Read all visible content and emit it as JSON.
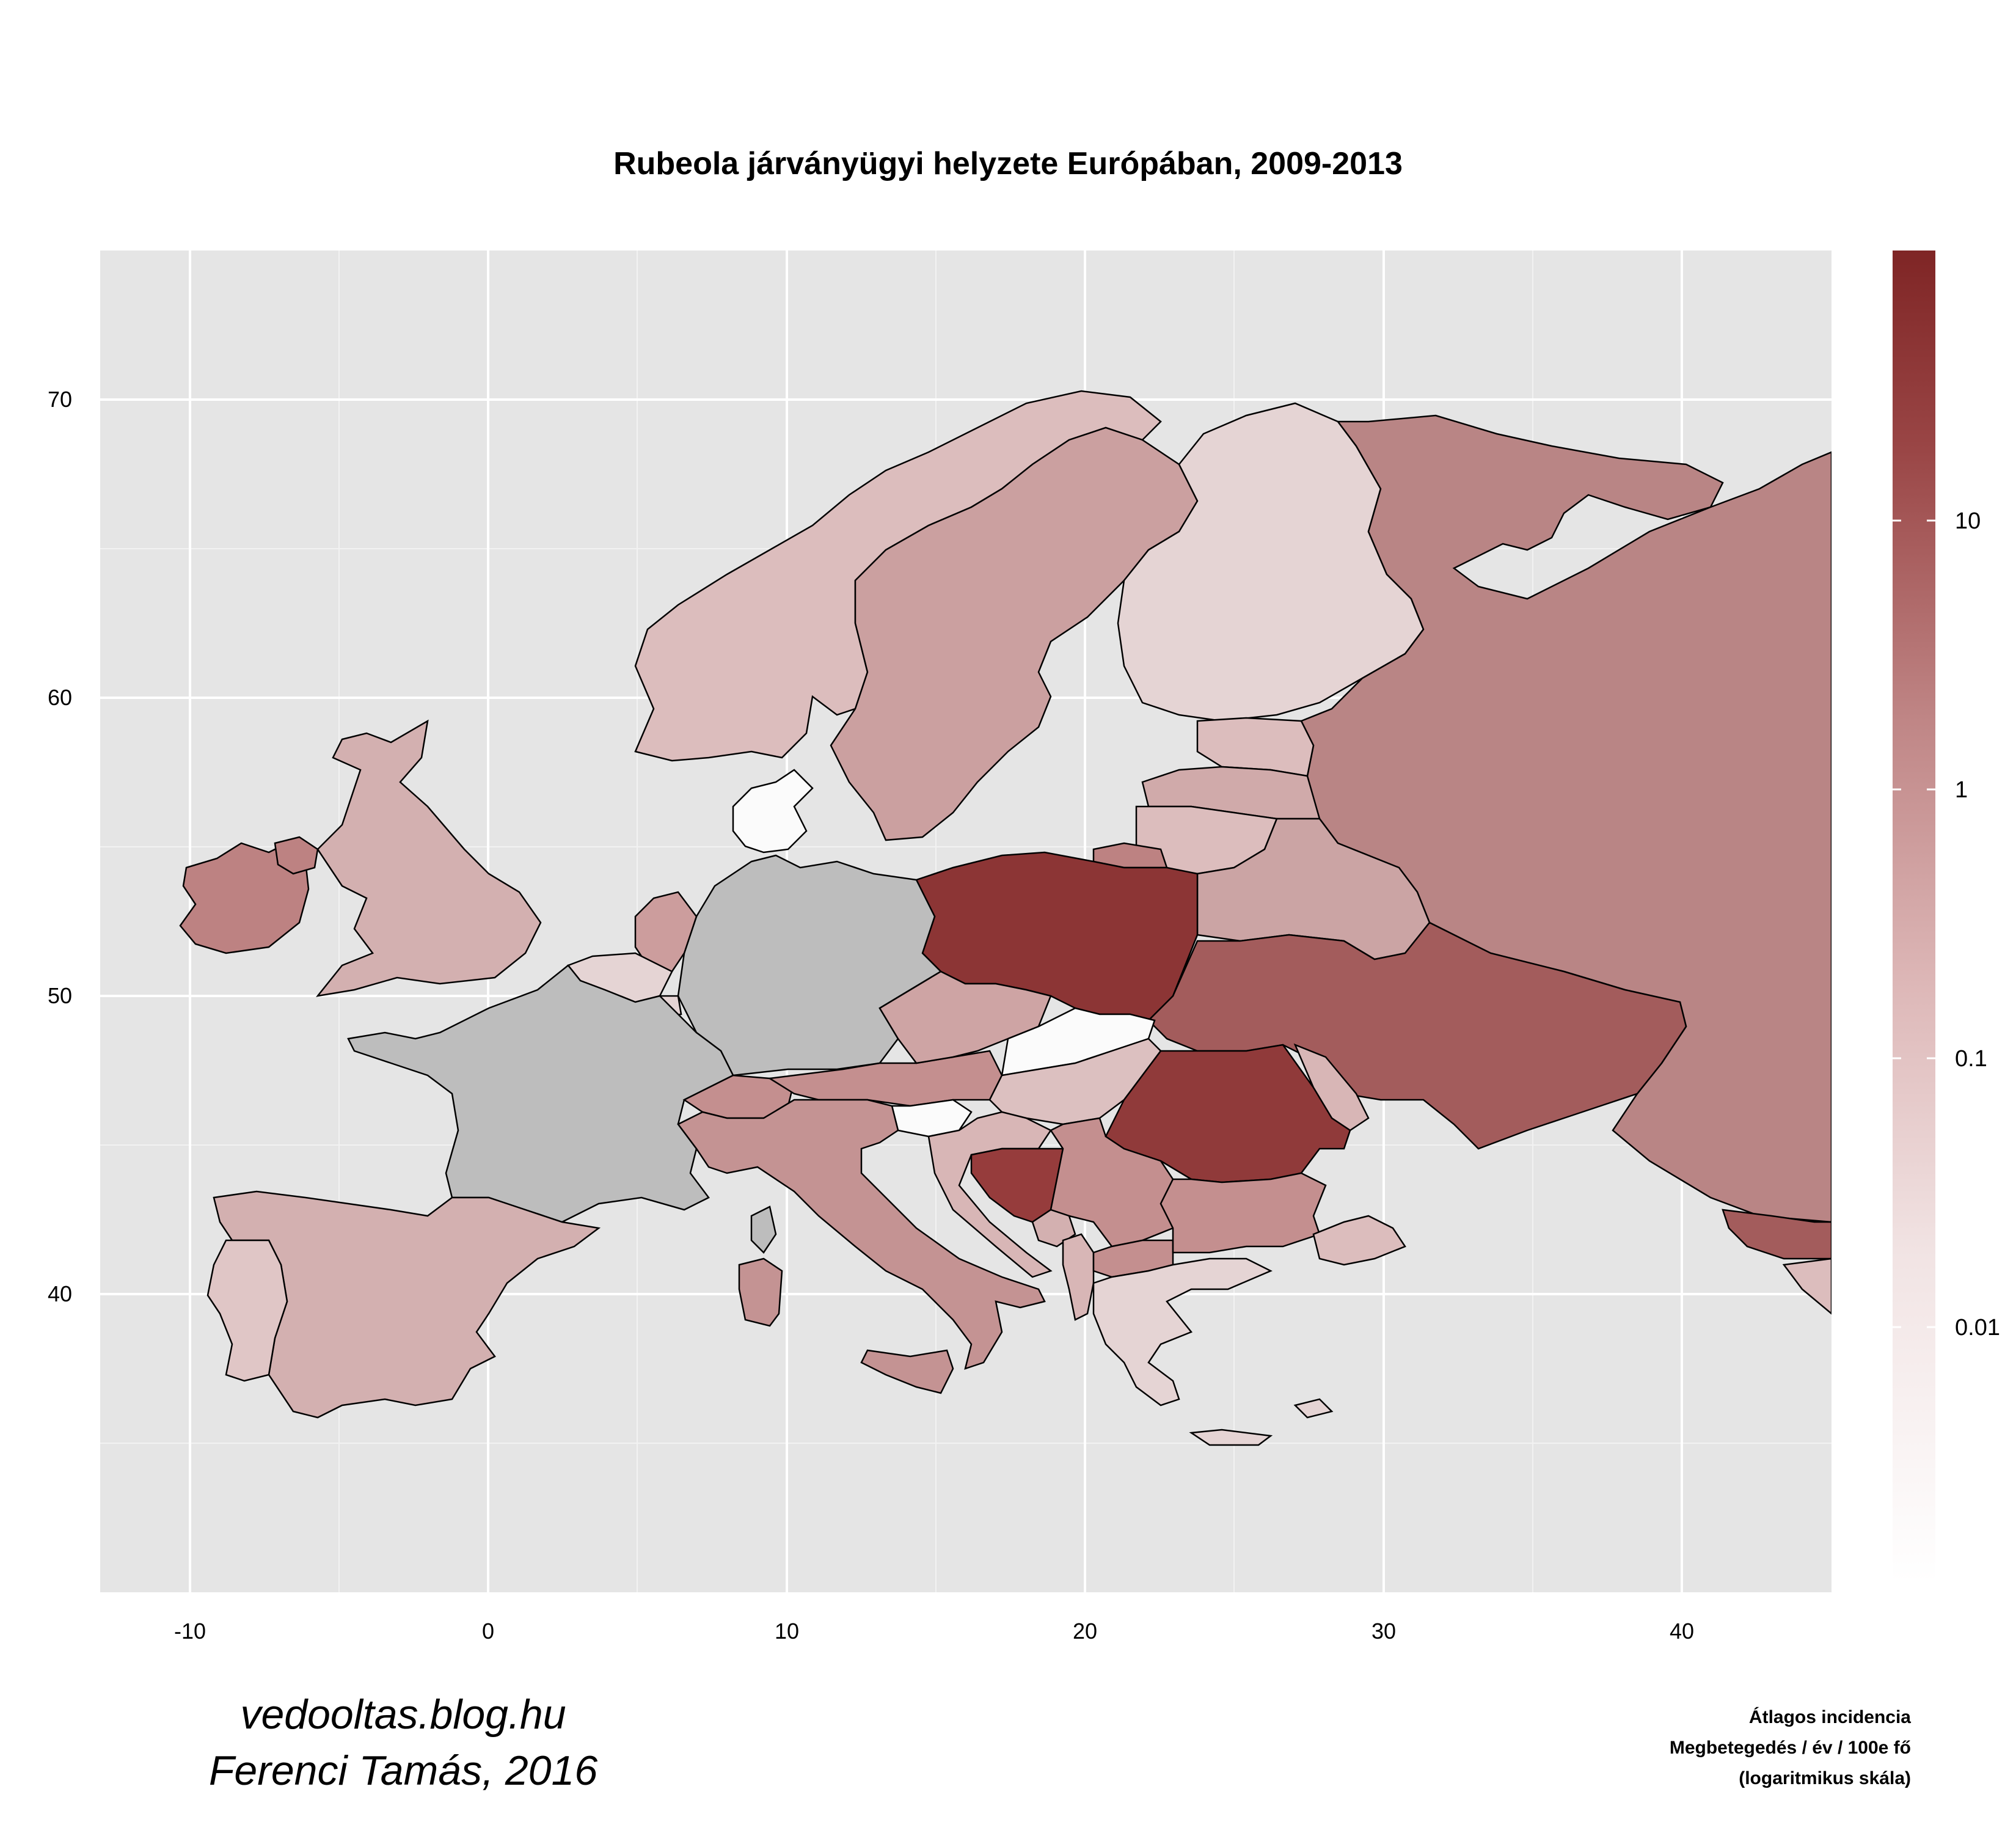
{
  "title": "Rubeola járványügyi helyzete Európában, 2009-2013",
  "chart_data": {
    "type": "choropleth",
    "title": "Rubeola járványügyi helyzete Európában, 2009-2013",
    "x_ticks": [
      "-10",
      "0",
      "10",
      "20",
      "30",
      "40"
    ],
    "y_ticks": [
      "40",
      "50",
      "60",
      "70"
    ],
    "xlim": [
      -13,
      45
    ],
    "ylim": [
      30,
      75
    ],
    "grid": true,
    "legend": {
      "title_lines": [
        "Átlagos incidencia",
        "Megbetegedés / év / 100e fő",
        "(logaritmikus skála)"
      ],
      "scale": "log",
      "ticks": [
        "10",
        "1",
        "0.1",
        "0.01"
      ],
      "color_low": "#ffffff",
      "color_high": "#7f2525",
      "placement": "right"
    },
    "no_data_color": "#bdbdbd",
    "background_color": "#e5e5e5"
  },
  "credit": {
    "line1": "vedooltas.blog.hu",
    "line2": "Ferenci Tamás, 2016"
  }
}
